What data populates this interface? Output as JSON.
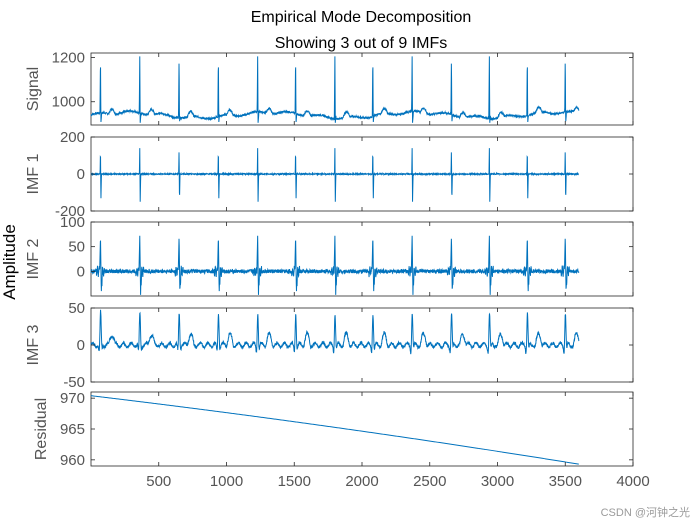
{
  "chart_data": {
    "type": "line",
    "title": "Empirical Mode Decomposition",
    "subtitle": "Showing 3 out of 9 IMFs",
    "ylabel": "Amplitude",
    "line_color": "#0072BD",
    "x_domain": [
      0,
      4000
    ],
    "data_x_range": [
      0,
      3600
    ],
    "x_ticks": [
      500,
      1000,
      1500,
      2000,
      2500,
      3000,
      3500,
      4000
    ],
    "beat_positions": [
      70,
      360,
      650,
      940,
      1230,
      1510,
      1800,
      2080,
      2370,
      2660,
      2940,
      3220,
      3500
    ],
    "panels": [
      {
        "name": "Signal",
        "ylabel": "Signal",
        "ylim": [
          895,
          1220
        ],
        "yticks": [
          1000,
          1200
        ],
        "baseline": 940,
        "beat_peak": 1205,
        "beat_dip": 905
      },
      {
        "name": "IMF 1",
        "ylabel": "IMF 1",
        "ylim": [
          -200,
          200
        ],
        "yticks": [
          -200,
          0,
          200
        ],
        "baseline": 0,
        "beat_peak": 140,
        "beat_dip": -150
      },
      {
        "name": "IMF 2",
        "ylabel": "IMF 2",
        "ylim": [
          -50,
          100
        ],
        "yticks": [
          0,
          50,
          100
        ],
        "baseline": 0,
        "beat_peak": 80,
        "beat_dip": -45
      },
      {
        "name": "IMF 3",
        "ylabel": "IMF 3",
        "ylim": [
          -50,
          50
        ],
        "yticks": [
          -50,
          0,
          50
        ],
        "baseline": 0,
        "beat_peak": 40,
        "beat_dip": -45
      },
      {
        "name": "Residual",
        "ylabel": "Residual",
        "ylim": [
          959,
          971
        ],
        "yticks": [
          960,
          965,
          970
        ],
        "residual_start": 970.4,
        "residual_end": 959.3
      }
    ]
  },
  "watermark": "CSDN @河钟之光"
}
